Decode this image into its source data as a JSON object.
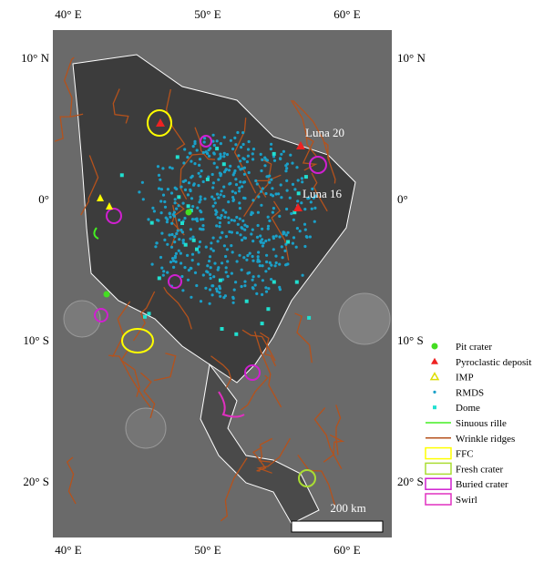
{
  "map": {
    "lon_labels": [
      "40° E",
      "50° E",
      "60° E"
    ],
    "lat_labels": [
      "10° N",
      "0°",
      "10° S",
      "20° S"
    ],
    "annotations": [
      "Luna 20",
      "Luna 16"
    ],
    "scale_bar": "200 km",
    "legend": [
      "Pit crater",
      "Pyroclastic deposit",
      "IMP",
      "RMDS",
      "Dome",
      "Sinuous rille",
      "Wrinkle ridges",
      "FFC",
      "Fresh crater",
      "Buried crater",
      "Swirl"
    ]
  }
}
